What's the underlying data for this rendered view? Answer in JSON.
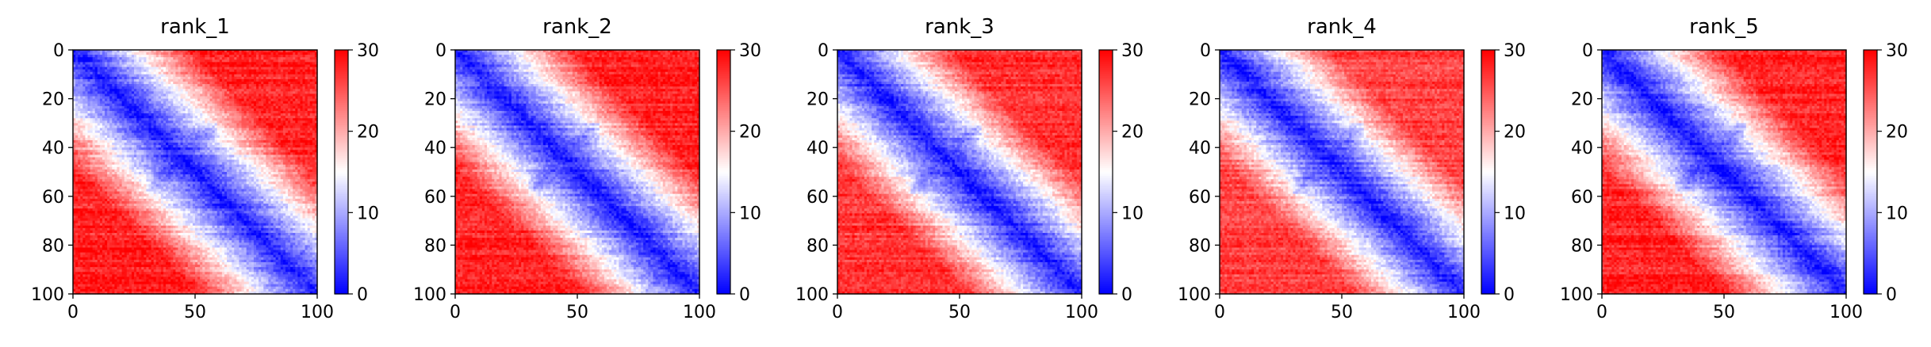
{
  "chart_data": [
    {
      "type": "heatmap",
      "title": "rank_1",
      "xlim": [
        0,
        100
      ],
      "ylim": [
        100,
        0
      ],
      "xticks": [
        0,
        50,
        100
      ],
      "yticks": [
        0,
        20,
        40,
        60,
        80,
        100
      ],
      "colorbar": {
        "range": [
          0,
          30
        ],
        "ticks": [
          0,
          10,
          20,
          30
        ],
        "colormap": [
          "#0000ff",
          "#ffffff",
          "#ff0000"
        ]
      },
      "pattern": {
        "diagonal_band": "low",
        "domains": [
          [
            30,
            58
          ],
          [
            76,
            100
          ]
        ],
        "background_value": 28
      }
    },
    {
      "type": "heatmap",
      "title": "rank_2",
      "xlim": [
        0,
        100
      ],
      "ylim": [
        100,
        0
      ],
      "xticks": [
        0,
        50,
        100
      ],
      "yticks": [
        0,
        20,
        40,
        60,
        80,
        100
      ],
      "colorbar": {
        "range": [
          0,
          30
        ],
        "ticks": [
          0,
          10,
          20,
          30
        ],
        "colormap": [
          "#0000ff",
          "#ffffff",
          "#ff0000"
        ]
      },
      "pattern": {
        "diagonal_band": "low",
        "domains": [
          [
            30,
            58
          ],
          [
            76,
            100
          ]
        ],
        "background_value": 28
      }
    },
    {
      "type": "heatmap",
      "title": "rank_3",
      "xlim": [
        0,
        100
      ],
      "ylim": [
        100,
        0
      ],
      "xticks": [
        0,
        50,
        100
      ],
      "yticks": [
        0,
        20,
        40,
        60,
        80,
        100
      ],
      "colorbar": {
        "range": [
          0,
          30
        ],
        "ticks": [
          0,
          10,
          20,
          30
        ],
        "colormap": [
          "#0000ff",
          "#ffffff",
          "#ff0000"
        ]
      },
      "pattern": {
        "diagonal_band": "low",
        "domains": [
          [
            30,
            58
          ]
        ],
        "background_value": 27
      }
    },
    {
      "type": "heatmap",
      "title": "rank_4",
      "xlim": [
        0,
        100
      ],
      "ylim": [
        100,
        0
      ],
      "xticks": [
        0,
        50,
        100
      ],
      "yticks": [
        0,
        20,
        40,
        60,
        80,
        100
      ],
      "colorbar": {
        "range": [
          0,
          30
        ],
        "ticks": [
          0,
          10,
          20,
          30
        ],
        "colormap": [
          "#0000ff",
          "#ffffff",
          "#ff0000"
        ]
      },
      "pattern": {
        "diagonal_band": "low",
        "domains": [
          [
            30,
            58
          ]
        ],
        "background_value": 26
      }
    },
    {
      "type": "heatmap",
      "title": "rank_5",
      "xlim": [
        0,
        100
      ],
      "ylim": [
        100,
        0
      ],
      "xticks": [
        0,
        50,
        100
      ],
      "yticks": [
        0,
        20,
        40,
        60,
        80,
        100
      ],
      "colorbar": {
        "range": [
          0,
          30
        ],
        "ticks": [
          0,
          10,
          20,
          30
        ],
        "colormap": [
          "#0000ff",
          "#ffffff",
          "#ff0000"
        ]
      },
      "pattern": {
        "diagonal_band": "low",
        "domains": [
          [
            30,
            58
          ]
        ],
        "background_value": 28
      }
    }
  ]
}
